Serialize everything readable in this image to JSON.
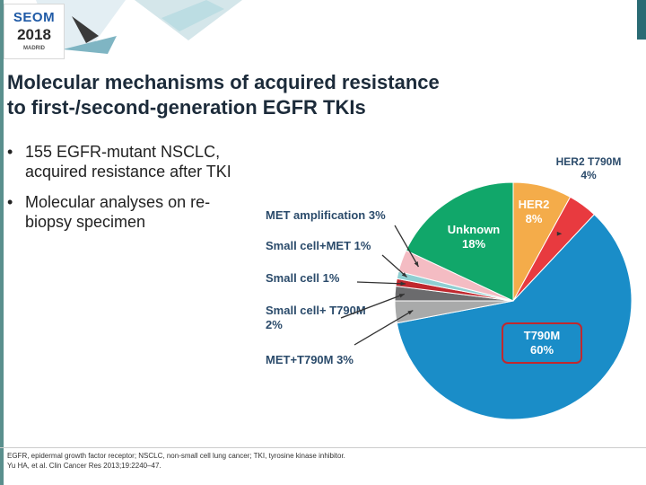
{
  "logo": {
    "line1": "SEOM",
    "line2": "2018",
    "line3": "MADRID"
  },
  "title": {
    "line1": "Molecular mechanisms of acquired resistance",
    "line2": "to first-/second-generation EGFR TKIs"
  },
  "bullets": [
    {
      "dot": "•",
      "text": "155 EGFR-mutant NSCLC, acquired resistance after TKI"
    },
    {
      "dot": "•",
      "text": "Molecular analyses on re-biopsy specimen"
    }
  ],
  "chart_data": {
    "type": "pie",
    "slices": [
      {
        "label": "HER2 8%",
        "value": 8,
        "color": "#f4ac4a"
      },
      {
        "label": "HER2 T790M 4%",
        "value": 4,
        "color": "#e83a3f"
      },
      {
        "label": "T790M 60%",
        "value": 60,
        "color": "#1a8dc8"
      },
      {
        "label": "MET+T790M 3%",
        "value": 3,
        "color": "#a9aaaa"
      },
      {
        "label": "Small cell+ T790M 2%",
        "value": 2,
        "color": "#6b6b6d"
      },
      {
        "label": "Small cell 1%",
        "value": 1,
        "color": "#c0282e"
      },
      {
        "label": "Small cell+MET 1%",
        "value": 1,
        "color": "#8fcfd2"
      },
      {
        "label": "MET amplification 3%",
        "value": 3,
        "color": "#f4bcc3"
      },
      {
        "label": "Unknown 18%",
        "value": 18,
        "color": "#11a76a"
      }
    ],
    "highlighted": "T790M 60%"
  },
  "footer": {
    "line1": "EGFR, epidermal growth factor receptor; NSCLC, non-small cell lung cancer; TKI, tyrosine kinase inhibitor.",
    "line2": "Yu HA, et al. Clin Cancer Res 2013;19:2240–47."
  }
}
